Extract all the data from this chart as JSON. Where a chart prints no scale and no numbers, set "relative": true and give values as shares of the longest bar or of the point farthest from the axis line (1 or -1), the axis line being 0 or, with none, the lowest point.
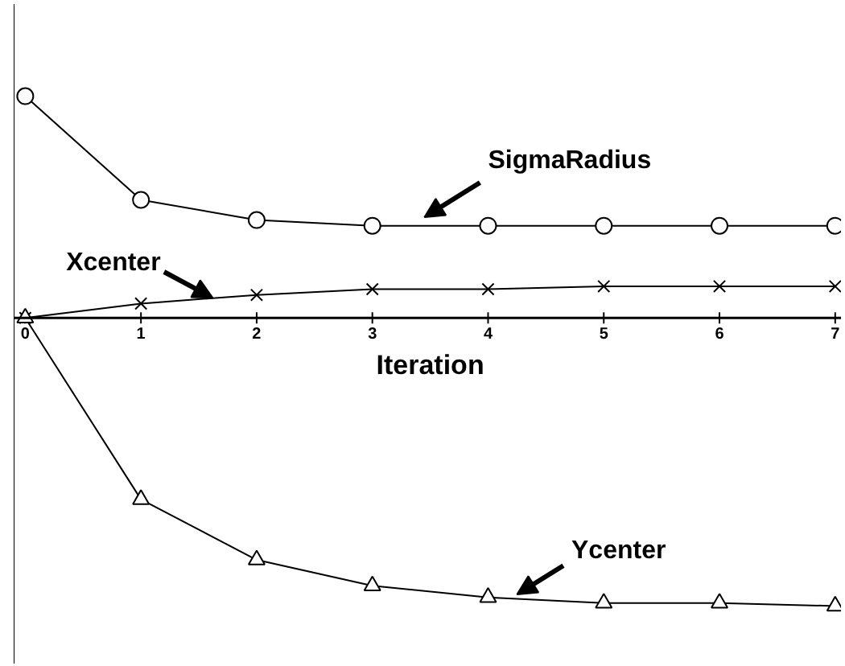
{
  "chart_data": {
    "type": "line",
    "relative": true,
    "xlabel": "Iteration",
    "x": [
      0,
      1,
      2,
      3,
      4,
      5,
      6,
      7
    ],
    "xlim": [
      -0.1,
      7.05
    ],
    "xticks": [
      0,
      1,
      2,
      3,
      4,
      5,
      6,
      7
    ],
    "grid": false,
    "series": [
      {
        "name": "SigmaRadius",
        "color": "#000000",
        "marker": "circle",
        "values": [
          0.77,
          0.41,
          0.34,
          0.32,
          0.32,
          0.32,
          0.32,
          0.32
        ]
      },
      {
        "name": "Xcenter",
        "color": "#000000",
        "marker": "cross",
        "values": [
          0,
          0.05,
          0.08,
          0.1,
          0.1,
          0.11,
          0.11,
          0.11
        ]
      },
      {
        "name": "Ycenter",
        "color": "#000000",
        "marker": "triangle",
        "values": [
          0,
          -0.63,
          -0.84,
          -0.93,
          -0.97,
          -0.99,
          -0.99,
          -1
        ]
      }
    ]
  }
}
